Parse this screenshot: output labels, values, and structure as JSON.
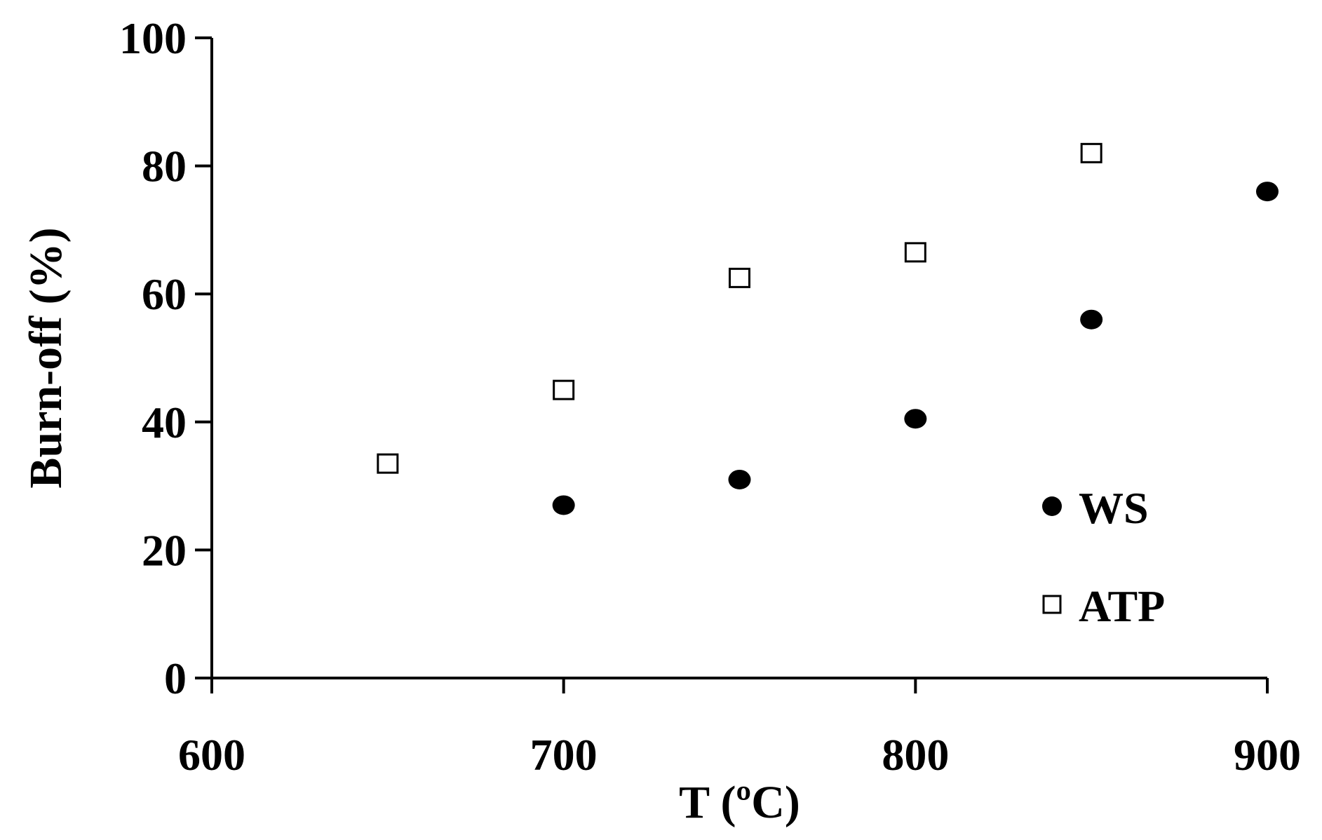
{
  "chart_data": {
    "type": "scatter",
    "xlabel": "T (ºC)",
    "ylabel": "Burn-off (%)",
    "xlim": [
      600,
      900
    ],
    "ylim": [
      0,
      100
    ],
    "xticks": [
      "600",
      "700",
      "800",
      "900"
    ],
    "yticks": [
      "0",
      "20",
      "40",
      "60",
      "80",
      "100"
    ],
    "grid": false,
    "legend_position": "bottom-right",
    "series": [
      {
        "name": "WS",
        "marker": "filled-circle",
        "color": "#000000",
        "points": [
          {
            "x": 700,
            "y": 27
          },
          {
            "x": 750,
            "y": 31
          },
          {
            "x": 800,
            "y": 40.5
          },
          {
            "x": 850,
            "y": 56
          },
          {
            "x": 900,
            "y": 76
          }
        ]
      },
      {
        "name": "ATP",
        "marker": "open-square",
        "color": "#000000",
        "points": [
          {
            "x": 650,
            "y": 33.5
          },
          {
            "x": 700,
            "y": 45
          },
          {
            "x": 750,
            "y": 62.5
          },
          {
            "x": 800,
            "y": 66.5
          },
          {
            "x": 850,
            "y": 82
          }
        ]
      }
    ]
  }
}
